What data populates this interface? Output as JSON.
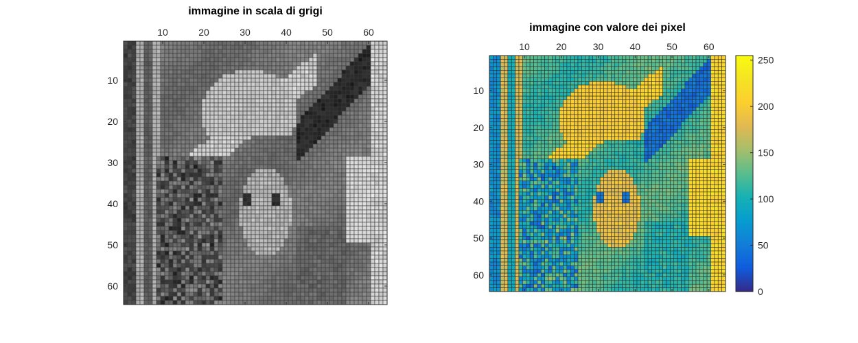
{
  "chart_data": [
    {
      "type": "heatmap",
      "title": "immagine in scala di grigi",
      "colormap": "gray",
      "grid": true,
      "grid_color": "#3a3a3a",
      "rows": 64,
      "cols": 64,
      "xlim": [
        0.5,
        64.5
      ],
      "ylim": [
        0.5,
        64.5
      ],
      "x_axis_location": "top",
      "y_axis_direction": "reverse",
      "x_ticks": [
        10,
        20,
        30,
        40,
        50,
        60
      ],
      "y_ticks": [
        10,
        20,
        30,
        40,
        50,
        60
      ],
      "colorbar": false
    },
    {
      "type": "heatmap",
      "title": "immagine con valore dei pixel",
      "colormap": "parula",
      "grid": true,
      "grid_color": "#2b2b2b",
      "rows": 64,
      "cols": 64,
      "xlim": [
        0.5,
        64.5
      ],
      "ylim": [
        0.5,
        64.5
      ],
      "x_axis_location": "top",
      "y_axis_direction": "reverse",
      "x_ticks": [
        10,
        20,
        30,
        40,
        50,
        60
      ],
      "y_ticks": [
        10,
        20,
        30,
        40,
        50,
        60
      ],
      "colorbar": true,
      "colorbar_range": [
        0,
        255
      ],
      "colorbar_ticks": [
        0,
        50,
        100,
        150,
        200,
        250
      ]
    }
  ]
}
